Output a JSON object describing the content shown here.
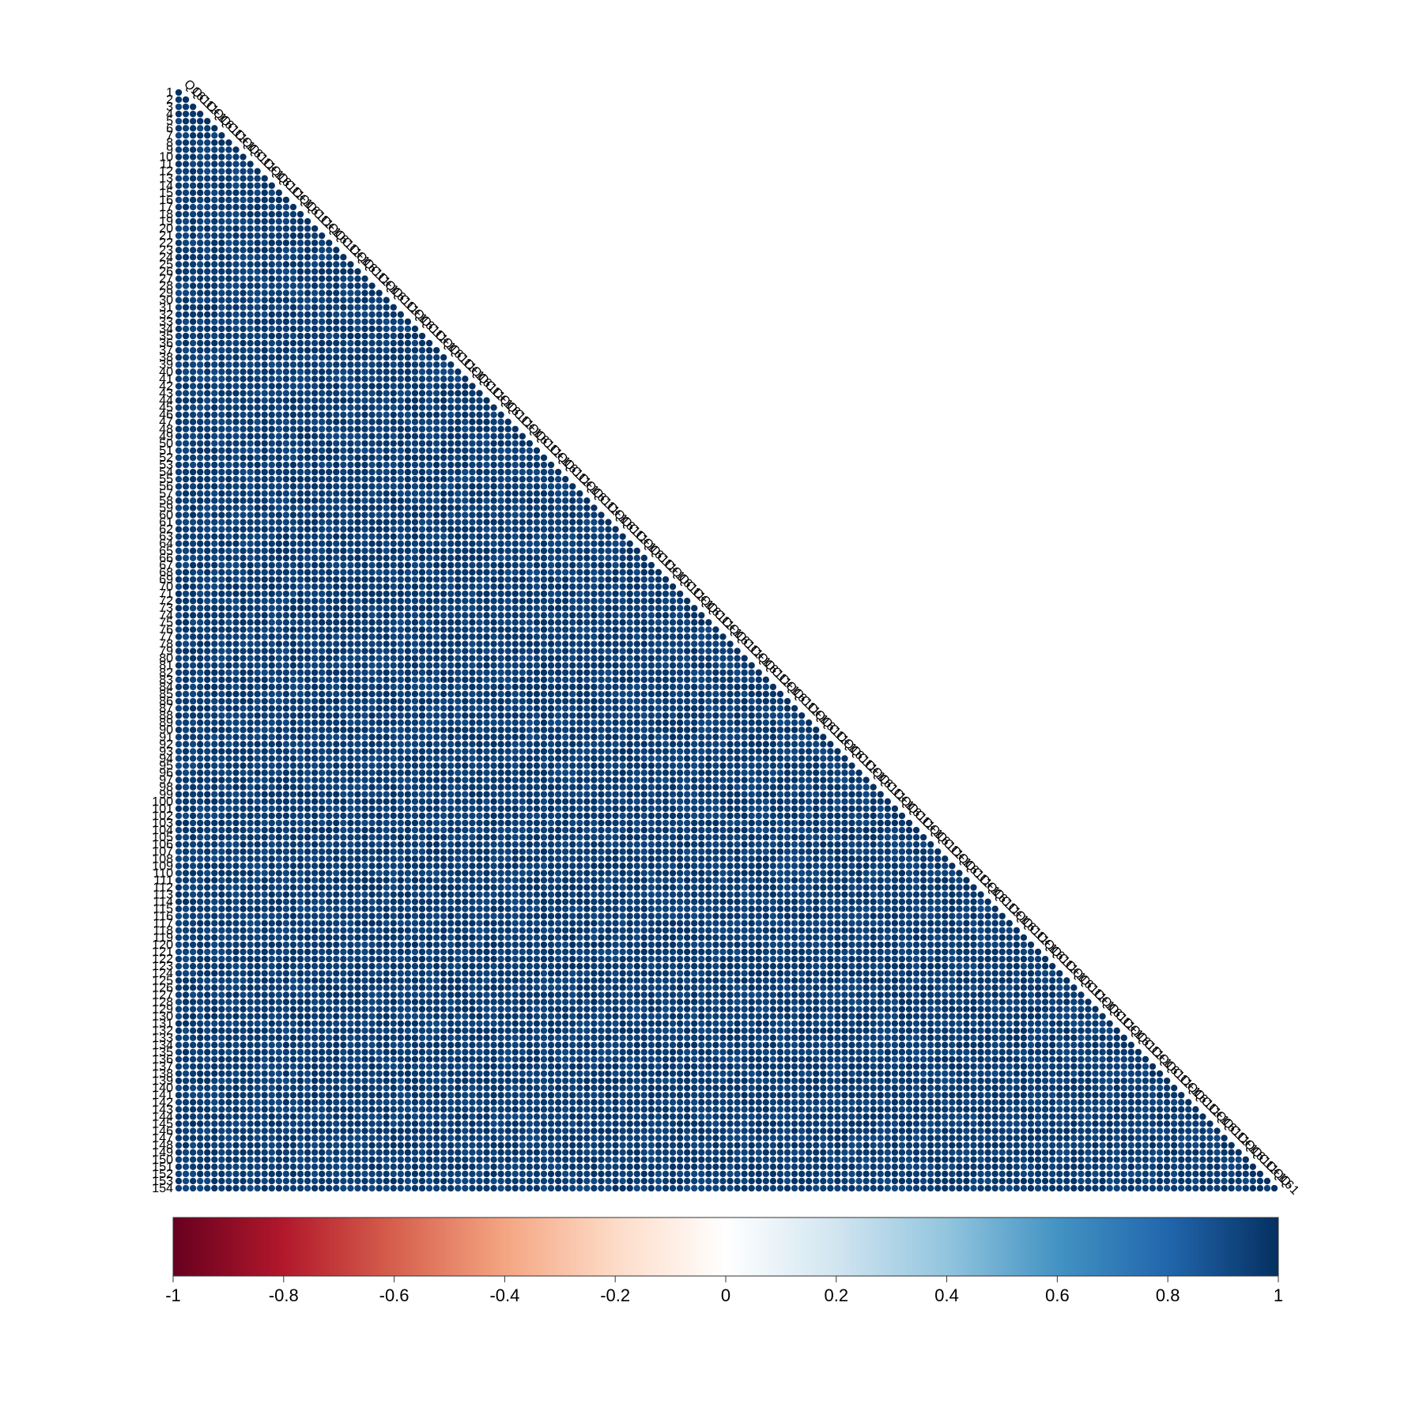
{
  "chart_data": {
    "type": "heatmap",
    "subtype": "lower-triangle correlation matrix (circle cells)",
    "n": 154,
    "row_labels_visible": [
      "1",
      "2",
      "3",
      "4",
      "5",
      "6",
      "7",
      "8",
      "9",
      "10",
      "11",
      "12",
      "13",
      "14",
      "15",
      "16",
      "17",
      "18",
      "19",
      "20",
      "21",
      "22",
      "23",
      "24",
      "25",
      "26",
      "27",
      "28",
      "29",
      "30",
      "31",
      "32",
      "33",
      "34",
      "35",
      "36",
      "37",
      "38",
      "39",
      "40",
      "41",
      "42",
      "43",
      "44",
      "45",
      "46",
      "47",
      "48",
      "49",
      "50",
      "51",
      "52",
      "53",
      "54",
      "55",
      "56",
      "57",
      "58",
      "59",
      "60",
      "61",
      "62",
      "63",
      "64",
      "65",
      "66",
      "67",
      "68",
      "69",
      "70",
      "71",
      "72",
      "73",
      "74",
      "75",
      "76",
      "77",
      "78",
      "79",
      "80",
      "81",
      "82",
      "83",
      "84",
      "85",
      "86",
      "87",
      "88",
      "89",
      "90",
      "91",
      "92",
      "93",
      "94",
      "95",
      "96",
      "97",
      "98",
      "99",
      "100",
      "101",
      "102",
      "103",
      "104",
      "105",
      "106",
      "107",
      "108",
      "109",
      "110",
      "111",
      "112",
      "113",
      "114",
      "115",
      "116",
      "117",
      "118",
      "119",
      "120",
      "121",
      "122",
      "123",
      "124",
      "125",
      "126",
      "127",
      "128",
      "129",
      "130",
      "131",
      "132",
      "133",
      "134",
      "135",
      "136",
      "137",
      "138",
      "139",
      "140",
      "141",
      "142",
      "143",
      "144",
      "145",
      "146",
      "147",
      "148",
      "149",
      "150",
      "151",
      "152",
      "153",
      "154"
    ],
    "column_labels_visible": [
      "Q16",
      "Q-1",
      "C11",
      "C+1"
    ],
    "value_range": [
      0.85,
      1.0
    ],
    "diagonal_value": 1,
    "colorbar": {
      "min": -1,
      "max": 1,
      "ticks": [
        "-1",
        "-0.8",
        "-0.6",
        "-0.4",
        "-0.2",
        "0",
        "0.2",
        "0.4",
        "0.6",
        "0.8",
        "1"
      ],
      "colors": [
        "#67001f",
        "#b2182b",
        "#d6604d",
        "#f4a582",
        "#fddbc7",
        "#ffffff",
        "#d1e5f0",
        "#92c5de",
        "#4393c3",
        "#2166ac",
        "#053061"
      ]
    },
    "title": "",
    "xlabel": "",
    "ylabel": "",
    "grid": false,
    "legend_placement": "bottom"
  }
}
